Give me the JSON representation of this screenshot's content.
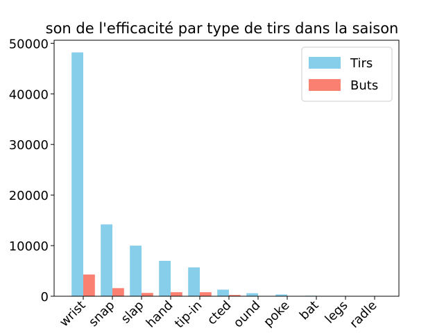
{
  "chart_data": {
    "type": "bar",
    "title": "son de l'efficacité par type de tirs dans la saison",
    "categories": [
      "wrist",
      "snap",
      "slap",
      "hand",
      "tip-in",
      "cted",
      "ound",
      "poke",
      "bat",
      "legs",
      "radle"
    ],
    "series": [
      {
        "name": "Tirs",
        "color": "#87ceeb",
        "values": [
          48200,
          14200,
          10000,
          7000,
          5700,
          1300,
          600,
          350,
          100,
          50,
          20
        ]
      },
      {
        "name": "Buts",
        "color": "#fa8072",
        "values": [
          4300,
          1600,
          650,
          800,
          800,
          250,
          30,
          20,
          5,
          2,
          1
        ]
      }
    ],
    "ylim": [
      0,
      50600
    ],
    "yticks": [
      0,
      10000,
      20000,
      30000,
      40000,
      50000
    ],
    "legend": "upper right"
  }
}
